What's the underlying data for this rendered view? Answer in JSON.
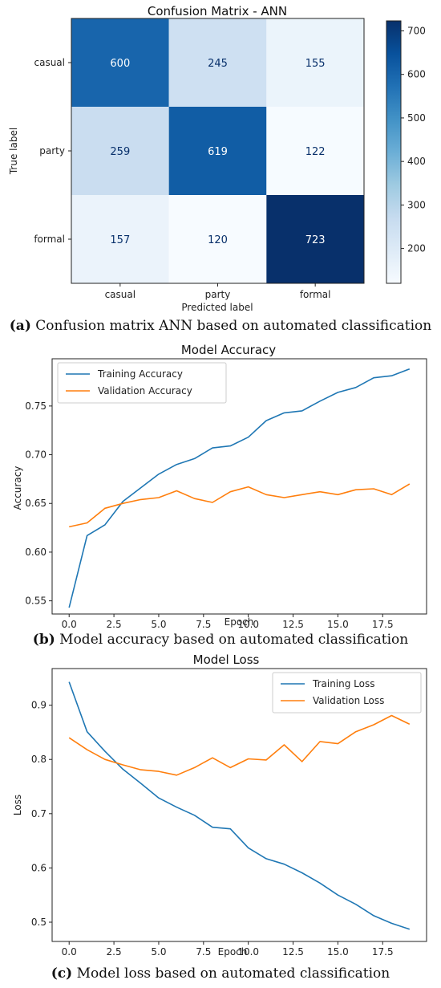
{
  "chart_data": [
    {
      "type": "heatmap",
      "title": "Confusion Matrix - ANN",
      "xlabel": "Predicted label",
      "ylabel": "True label",
      "x_categories": [
        "casual",
        "party",
        "formal"
      ],
      "y_categories": [
        "casual",
        "party",
        "formal"
      ],
      "values": [
        [
          600,
          245,
          155
        ],
        [
          259,
          619,
          122
        ],
        [
          157,
          120,
          723
        ]
      ],
      "colorbar": {
        "range": [
          120,
          723
        ],
        "ticks": [
          "200",
          "300",
          "400",
          "500",
          "600",
          "700"
        ],
        "colormap": "Blues"
      },
      "caption_tag": "(a)",
      "caption_text": " Confusion matrix ANN based on automated classification"
    },
    {
      "type": "line",
      "title": "Model Accuracy",
      "xlabel": "Epoch",
      "ylabel": "Accuracy",
      "x": [
        0,
        1,
        2,
        3,
        4,
        5,
        6,
        7,
        8,
        9,
        10,
        11,
        12,
        13,
        14,
        15,
        16,
        17,
        18,
        19
      ],
      "xlim": [
        -0.95,
        19.95
      ],
      "ylim": [
        0.5365,
        0.7985
      ],
      "x_ticks": [
        "0.0",
        "2.5",
        "5.0",
        "7.5",
        "10.0",
        "12.5",
        "15.0",
        "17.5"
      ],
      "y_ticks": [
        "0.55",
        "0.60",
        "0.65",
        "0.70",
        "0.75"
      ],
      "legend": "upper-left",
      "series": [
        {
          "name": "Training Accuracy",
          "color": "#1f77b4",
          "values": [
            0.543,
            0.617,
            0.628,
            0.652,
            0.666,
            0.68,
            0.69,
            0.696,
            0.707,
            0.709,
            0.718,
            0.735,
            0.743,
            0.745,
            0.755,
            0.764,
            0.769,
            0.779,
            0.781,
            0.788
          ]
        },
        {
          "name": "Validation Accuracy",
          "color": "#ff7f0e",
          "values": [
            0.626,
            0.63,
            0.645,
            0.65,
            0.654,
            0.656,
            0.663,
            0.655,
            0.651,
            0.662,
            0.667,
            0.659,
            0.656,
            0.659,
            0.662,
            0.659,
            0.664,
            0.665,
            0.659,
            0.67
          ]
        }
      ],
      "caption_tag": "(b)",
      "caption_text": " Model accuracy based on automated classification"
    },
    {
      "type": "line",
      "title": "Model Loss",
      "xlabel": "Epoch",
      "ylabel": "Loss",
      "x": [
        0,
        1,
        2,
        3,
        4,
        5,
        6,
        7,
        8,
        9,
        10,
        11,
        12,
        13,
        14,
        15,
        16,
        17,
        18,
        19
      ],
      "xlim": [
        -0.95,
        19.95
      ],
      "ylim": [
        0.4645,
        0.9675
      ],
      "x_ticks": [
        "0.0",
        "2.5",
        "5.0",
        "7.5",
        "10.0",
        "12.5",
        "15.0",
        "17.5"
      ],
      "y_ticks": [
        "0.5",
        "0.6",
        "0.7",
        "0.8",
        "0.9"
      ],
      "legend": "upper-right",
      "series": [
        {
          "name": "Training Loss",
          "color": "#1f77b4",
          "values": [
            0.943,
            0.851,
            0.815,
            0.782,
            0.756,
            0.729,
            0.712,
            0.697,
            0.675,
            0.672,
            0.637,
            0.617,
            0.607,
            0.591,
            0.572,
            0.55,
            0.533,
            0.512,
            0.498,
            0.487
          ]
        },
        {
          "name": "Validation Loss",
          "color": "#ff7f0e",
          "values": [
            0.84,
            0.818,
            0.8,
            0.79,
            0.781,
            0.778,
            0.771,
            0.785,
            0.803,
            0.785,
            0.801,
            0.799,
            0.827,
            0.796,
            0.833,
            0.829,
            0.851,
            0.864,
            0.881,
            0.865
          ]
        }
      ],
      "caption_tag": "(c)",
      "caption_text": " Model loss based on automated classification"
    }
  ]
}
